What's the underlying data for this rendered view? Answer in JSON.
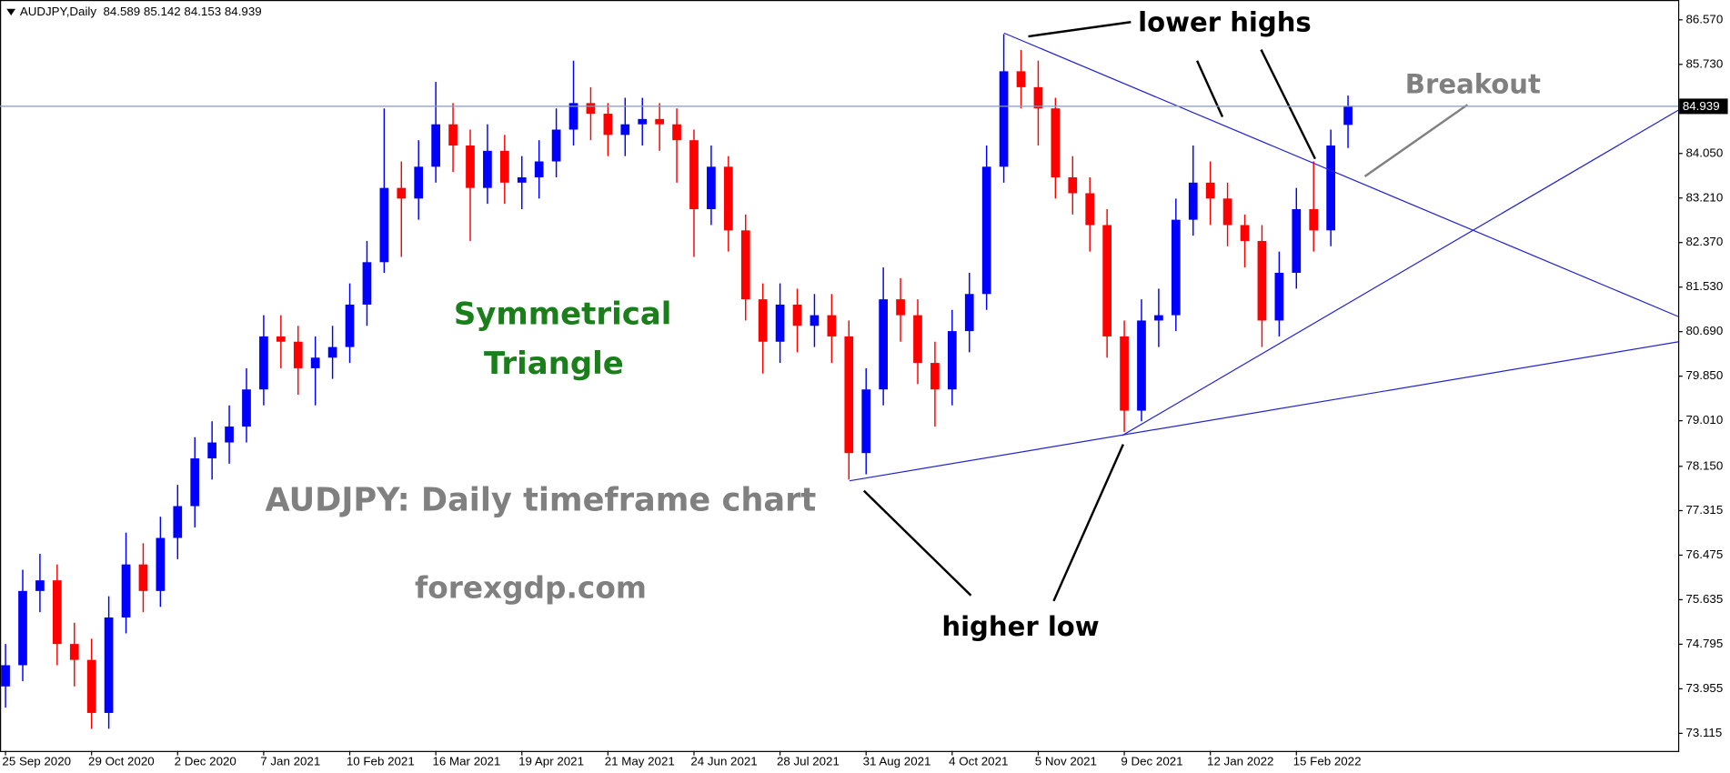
{
  "chart_data": {
    "type": "candlestick",
    "title": "AUDJPY,Daily  84.589 85.142 84.153 84.939",
    "annotations": {
      "lower_highs": "lower highs",
      "breakout": "Breakout",
      "pattern_1": "Symmetrical",
      "pattern_2": "Triangle",
      "caption": "AUDJPY: Daily timeframe chart",
      "site": "forexgdp.com",
      "higher_low": "higher low"
    },
    "up_color": "#0000ff",
    "down_color": "#ff0000",
    "categories": [
      "25 Sep 2020",
      null,
      null,
      null,
      null,
      "29 Oct 2020",
      null,
      null,
      null,
      null,
      "2 Dec 2020",
      null,
      null,
      null,
      null,
      "7 Jan 2021",
      null,
      null,
      null,
      null,
      "10 Feb 2021",
      null,
      null,
      null,
      null,
      "16 Mar 2021",
      null,
      null,
      null,
      null,
      "19 Apr 2021",
      null,
      null,
      null,
      null,
      "21 May 2021",
      null,
      null,
      null,
      null,
      "24 Jun 2021",
      null,
      null,
      null,
      null,
      "28 Jul 2021",
      null,
      null,
      null,
      null,
      "31 Aug 2021",
      null,
      null,
      null,
      null,
      "4 Oct 2021",
      null,
      null,
      null,
      null,
      "5 Nov 2021",
      null,
      null,
      null,
      null,
      "9 Dec 2021",
      null,
      null,
      null,
      null,
      "12 Jan 2022",
      null,
      null,
      null,
      null,
      "15 Feb 2022",
      null,
      null,
      null
    ],
    "open": [
      74.0,
      74.4,
      75.8,
      76.0,
      74.8,
      74.5,
      73.5,
      75.3,
      76.3,
      75.8,
      76.8,
      77.4,
      78.3,
      78.6,
      78.9,
      79.6,
      80.6,
      80.5,
      80.0,
      80.2,
      80.4,
      81.2,
      82.0,
      83.4,
      83.2,
      83.8,
      84.6,
      84.2,
      83.4,
      84.1,
      83.5,
      83.6,
      83.9,
      84.5,
      85.0,
      84.8,
      84.4,
      84.6,
      84.7,
      84.6,
      84.3,
      83.0,
      83.8,
      82.6,
      81.3,
      80.5,
      81.2,
      80.8,
      81.0,
      80.6,
      78.4,
      79.6,
      81.3,
      81.0,
      80.1,
      79.6,
      80.7,
      81.4,
      83.8,
      85.6,
      85.3,
      84.9,
      83.6,
      83.3,
      82.7,
      80.6,
      79.2,
      80.9,
      81.0,
      82.8,
      83.5,
      83.2,
      82.7,
      82.4,
      80.9,
      81.8,
      83.0,
      82.6,
      84.589
    ],
    "high": [
      74.8,
      76.2,
      76.5,
      76.3,
      75.2,
      74.9,
      75.7,
      76.9,
      76.7,
      77.2,
      77.8,
      78.7,
      79.0,
      79.3,
      80.0,
      81.0,
      81.0,
      80.8,
      80.6,
      80.8,
      81.6,
      82.4,
      84.9,
      83.9,
      84.3,
      85.4,
      85.0,
      84.5,
      84.6,
      84.4,
      84.0,
      84.3,
      84.9,
      85.8,
      85.3,
      85.0,
      85.1,
      85.1,
      85.0,
      84.9,
      84.5,
      84.2,
      84.0,
      82.9,
      81.6,
      81.6,
      81.5,
      81.4,
      81.4,
      80.9,
      80.0,
      81.9,
      81.7,
      81.3,
      80.5,
      81.1,
      81.8,
      84.2,
      86.3,
      86.0,
      85.8,
      85.1,
      84.0,
      83.6,
      83.0,
      80.9,
      81.3,
      81.5,
      83.2,
      84.2,
      83.9,
      83.5,
      82.9,
      82.7,
      82.2,
      83.4,
      83.9,
      84.5,
      85.142
    ],
    "low": [
      73.6,
      74.1,
      75.4,
      74.4,
      74.0,
      73.2,
      73.2,
      75.0,
      75.4,
      75.5,
      76.4,
      77.0,
      77.9,
      78.2,
      78.6,
      79.3,
      80.0,
      79.5,
      79.3,
      79.8,
      80.1,
      80.8,
      81.8,
      82.1,
      82.8,
      83.5,
      83.7,
      82.4,
      83.1,
      83.1,
      83.0,
      83.2,
      83.6,
      84.2,
      84.3,
      84.0,
      84.0,
      84.2,
      84.1,
      83.5,
      82.1,
      82.7,
      82.2,
      80.9,
      79.9,
      80.1,
      80.3,
      80.4,
      80.1,
      77.9,
      78.0,
      79.3,
      80.5,
      79.7,
      78.9,
      79.3,
      80.3,
      81.1,
      83.5,
      84.9,
      84.2,
      83.2,
      82.9,
      82.2,
      80.2,
      78.8,
      79.0,
      80.4,
      80.7,
      82.5,
      82.7,
      82.3,
      81.9,
      80.4,
      80.6,
      81.5,
      82.2,
      82.3,
      84.153
    ],
    "close": [
      74.4,
      75.8,
      76.0,
      74.8,
      74.5,
      73.5,
      75.3,
      76.3,
      75.8,
      76.8,
      77.4,
      78.3,
      78.6,
      78.9,
      79.6,
      80.6,
      80.5,
      80.0,
      80.2,
      80.4,
      81.2,
      82.0,
      83.4,
      83.2,
      83.8,
      84.6,
      84.2,
      83.4,
      84.1,
      83.5,
      83.6,
      83.9,
      84.5,
      85.0,
      84.8,
      84.4,
      84.6,
      84.7,
      84.6,
      84.3,
      83.0,
      83.8,
      82.6,
      81.3,
      80.5,
      81.2,
      80.8,
      81.0,
      80.6,
      78.4,
      79.6,
      81.3,
      81.0,
      80.1,
      79.6,
      80.7,
      81.4,
      83.8,
      85.6,
      85.3,
      84.9,
      83.6,
      83.3,
      82.7,
      80.6,
      79.2,
      80.9,
      81.0,
      82.8,
      83.5,
      83.2,
      82.7,
      82.4,
      80.9,
      81.8,
      83.0,
      82.6,
      84.2,
      84.939
    ],
    "ylim": [
      72.783,
      86.944
    ],
    "yticks": [
      {
        "value": 86.57,
        "label": "86.570"
      },
      {
        "value": 85.73,
        "label": "85.730"
      },
      {
        "value": 84.05,
        "label": "84.050"
      },
      {
        "value": 83.21,
        "label": "83.210"
      },
      {
        "value": 82.37,
        "label": "82.370"
      },
      {
        "value": 81.53,
        "label": "81.530"
      },
      {
        "value": 80.69,
        "label": "80.690"
      },
      {
        "value": 79.85,
        "label": "79.850"
      },
      {
        "value": 79.01,
        "label": "79.010"
      },
      {
        "value": 78.15,
        "label": "78.150"
      },
      77.315,
      76.475,
      75.635,
      74.795,
      73.955,
      73.115
    ]
  }
}
